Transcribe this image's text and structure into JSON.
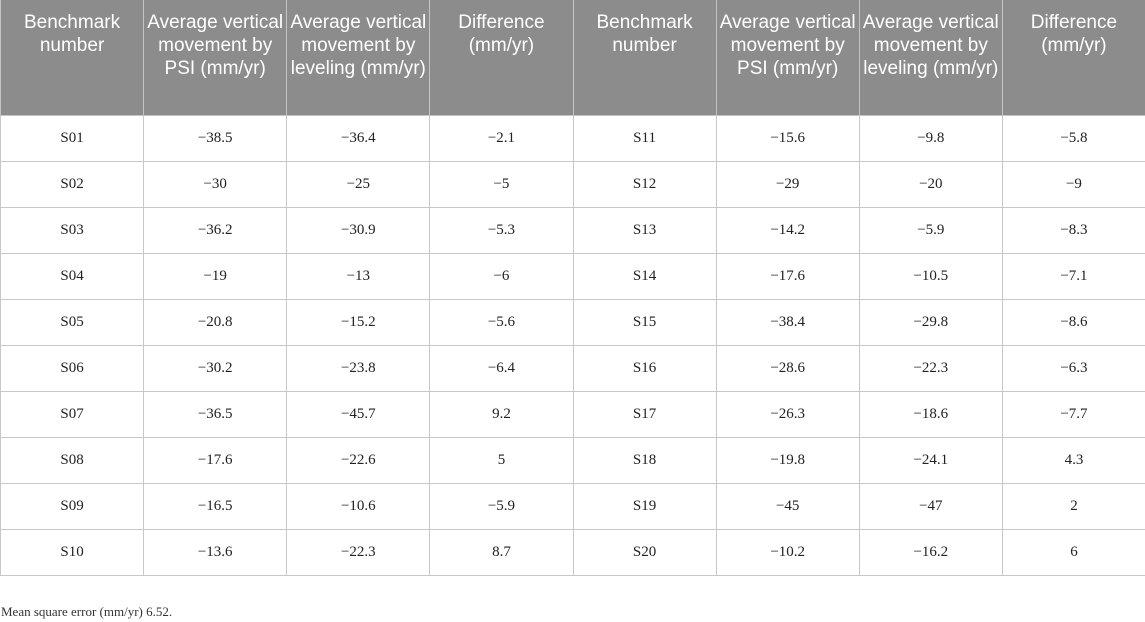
{
  "table": {
    "headers": [
      "Benchmark number",
      "Average vertical movement by PSI (mm/yr)",
      "Average vertical movement by leveling (mm/yr)",
      "Difference (mm/yr)",
      "Benchmark number",
      "Average vertical movement by PSI (mm/yr)",
      "Average vertical movement by leveling (mm/yr)",
      "Difference (mm/yr)"
    ],
    "rows": [
      [
        "S01",
        "−38.5",
        "−36.4",
        "−2.1",
        "S11",
        "−15.6",
        "−9.8",
        "−5.8"
      ],
      [
        "S02",
        "−30",
        "−25",
        "−5",
        "S12",
        "−29",
        "−20",
        "−9"
      ],
      [
        "S03",
        "−36.2",
        "−30.9",
        "−5.3",
        "S13",
        "−14.2",
        "−5.9",
        "−8.3"
      ],
      [
        "S04",
        "−19",
        "−13",
        "−6",
        "S14",
        "−17.6",
        "−10.5",
        "−7.1"
      ],
      [
        "S05",
        "−20.8",
        "−15.2",
        "−5.6",
        "S15",
        "−38.4",
        "−29.8",
        "−8.6"
      ],
      [
        "S06",
        "−30.2",
        "−23.8",
        "−6.4",
        "S16",
        "−28.6",
        "−22.3",
        "−6.3"
      ],
      [
        "S07",
        "−36.5",
        "−45.7",
        "9.2",
        "S17",
        "−26.3",
        "−18.6",
        "−7.7"
      ],
      [
        "S08",
        "−17.6",
        "−22.6",
        "5",
        "S18",
        "−19.8",
        "−24.1",
        "4.3"
      ],
      [
        "S09",
        "−16.5",
        "−10.6",
        "−5.9",
        "S19",
        "−45",
        "−47",
        "2"
      ],
      [
        "S10",
        "−13.6",
        "−22.3",
        "8.7",
        "S20",
        "−10.2",
        "−16.2",
        "6"
      ]
    ]
  },
  "footnote": "Mean square error (mm/yr) 6.52."
}
